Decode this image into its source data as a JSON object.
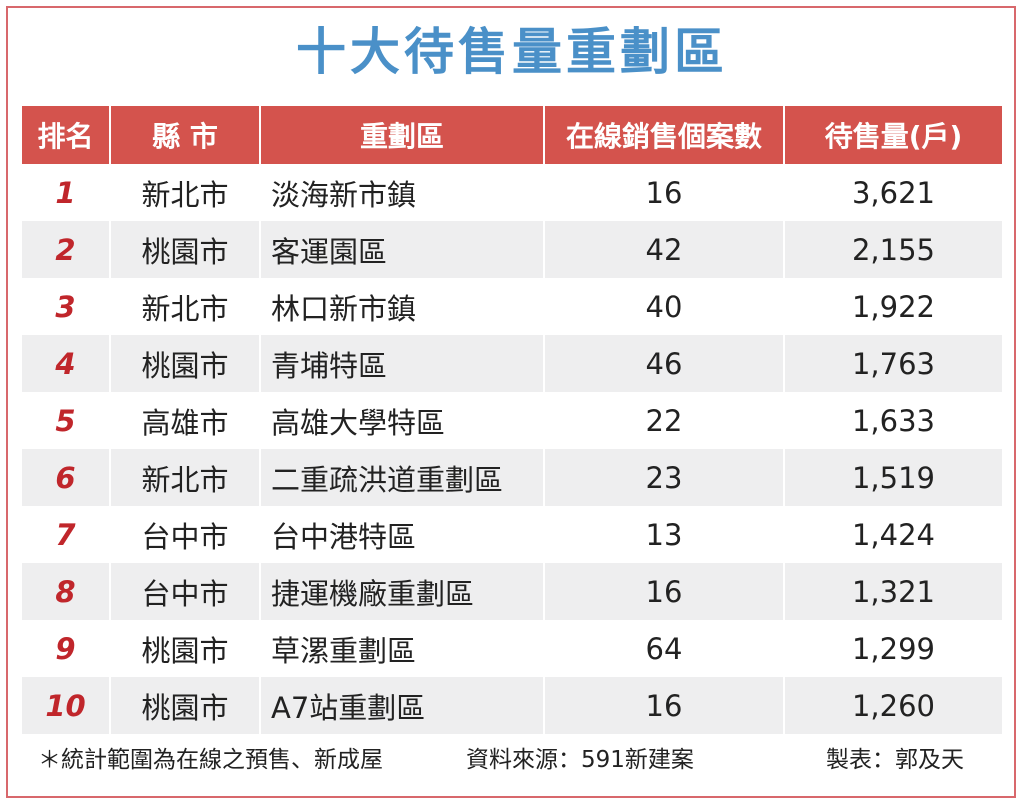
{
  "title": "十大待售量重劃區",
  "table": {
    "headers": [
      "排名",
      "縣 市",
      "重劃區",
      "在線銷售個案數",
      "待售量(戶)"
    ],
    "rows": [
      {
        "rank": "1",
        "county": "新北市",
        "district": "淡海新市鎮",
        "cases": "16",
        "inventory": "3,621"
      },
      {
        "rank": "2",
        "county": "桃園市",
        "district": "客運園區",
        "cases": "42",
        "inventory": "2,155"
      },
      {
        "rank": "3",
        "county": "新北市",
        "district": "林口新市鎮",
        "cases": "40",
        "inventory": "1,922"
      },
      {
        "rank": "4",
        "county": "桃園市",
        "district": "青埔特區",
        "cases": "46",
        "inventory": "1,763"
      },
      {
        "rank": "5",
        "county": "高雄市",
        "district": "高雄大學特區",
        "cases": "22",
        "inventory": "1,633"
      },
      {
        "rank": "6",
        "county": "新北市",
        "district": "二重疏洪道重劃區",
        "cases": "23",
        "inventory": "1,519"
      },
      {
        "rank": "7",
        "county": "台中市",
        "district": "台中港特區",
        "cases": "13",
        "inventory": "1,424"
      },
      {
        "rank": "8",
        "county": "台中市",
        "district": "捷運機廠重劃區",
        "cases": "16",
        "inventory": "1,321"
      },
      {
        "rank": "9",
        "county": "桃園市",
        "district": "草漯重劃區",
        "cases": "64",
        "inventory": "1,299"
      },
      {
        "rank": "10",
        "county": "桃園市",
        "district": "A7站重劃區",
        "cases": "16",
        "inventory": "1,260"
      }
    ]
  },
  "footer": {
    "note": "＊統計範圍為在線之預售、新成屋",
    "source": "資料來源：591新建案",
    "credit": "製表：郭及天"
  },
  "colors": {
    "title": "#4a90c8",
    "header_bg": "#d4534d",
    "rank_text": "#c0262b",
    "stripe": "#eeeeef",
    "border": "#d8686c"
  }
}
